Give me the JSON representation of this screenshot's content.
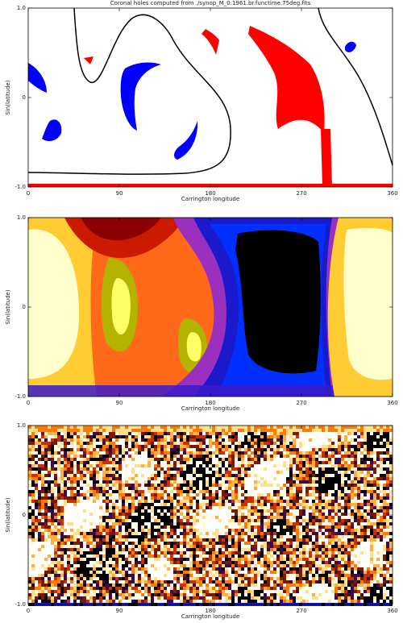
{
  "chart_data": [
    {
      "type": "coronal-hole-map",
      "title": "Coronal holes computed from ./synop_M_0.1961.br.functime.75deg.fits",
      "xlabel": "Carrington longitude",
      "ylabel": "Sin(latitude)",
      "xlim": [
        0,
        360
      ],
      "xticks": [
        0,
        90,
        180,
        270,
        360
      ],
      "ylim": [
        -1,
        1
      ],
      "yticks": [
        {
          "value": -1,
          "label": "-1.0"
        },
        0,
        {
          "value": 1,
          "label": "1.0"
        }
      ]
    },
    {
      "type": "contour-map",
      "xlabel": "Carrington longitude",
      "ylabel": "Sin(latitude)",
      "xlim": [
        0,
        360
      ],
      "xticks": [
        0,
        90,
        180,
        270,
        360
      ],
      "ylim": [
        -1,
        1
      ],
      "yticks": [
        {
          "value": -1,
          "label": "-1.0"
        },
        0,
        {
          "value": 1,
          "label": "1.0"
        }
      ]
    },
    {
      "type": "magnetogram-map",
      "xlabel": "Carrington longitude",
      "ylabel": "Sin(latitude)",
      "xlim": [
        0,
        360
      ],
      "xticks": [
        0,
        90,
        180,
        270,
        360
      ],
      "ylim": [
        -1,
        1
      ],
      "yticks": [
        {
          "value": -1,
          "label": "-1.0"
        },
        0,
        {
          "value": 1,
          "label": "1.0"
        }
      ]
    }
  ]
}
